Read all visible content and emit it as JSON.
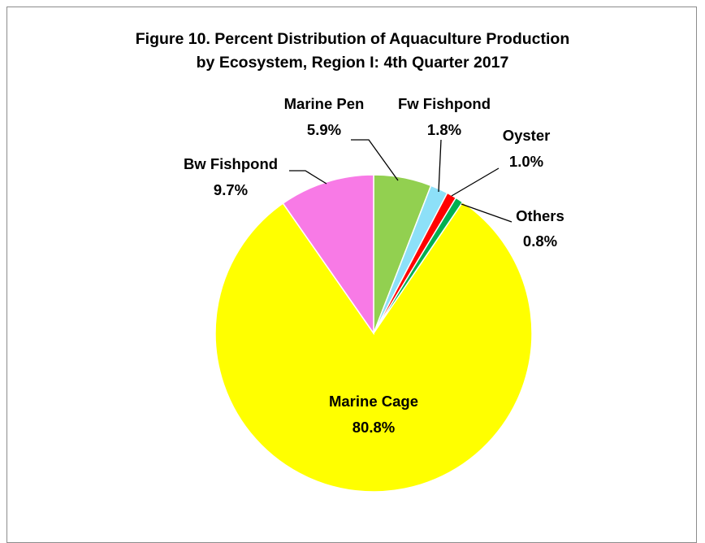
{
  "chart_data": {
    "type": "pie",
    "title_lines": [
      "Figure 10. Percent Distribution of Aquaculture Production",
      "by Ecosystem, Region I: 4th Quarter 2017"
    ],
    "categories": [
      "Marine Pen",
      "Fw Fishpond",
      "Oyster",
      "Others",
      "Marine Cage",
      "Bw Fishpond"
    ],
    "values": [
      5.9,
      1.8,
      1.0,
      0.8,
      80.8,
      9.7
    ],
    "value_labels": [
      "5.9%",
      "1.8%",
      "1.0%",
      "0.8%",
      "80.8%",
      "9.7%"
    ],
    "unit": "%",
    "start_angle_deg": 0,
    "direction": "clockwise",
    "colors": [
      "#92D050",
      "#8DE0F8",
      "#FF0000",
      "#00B050",
      "#FFFF00",
      "#F87AE6"
    ],
    "legend": "none",
    "label_placement": [
      "outside",
      "outside",
      "outside",
      "outside",
      "inside",
      "outside"
    ]
  }
}
